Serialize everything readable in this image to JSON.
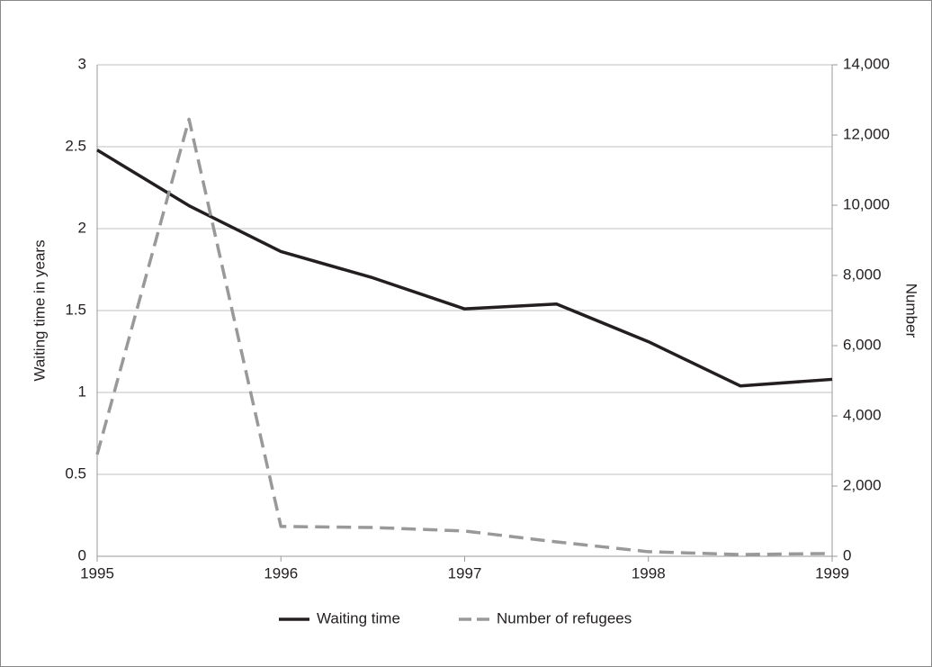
{
  "chart_data": {
    "type": "line",
    "x": [
      1995,
      1995.5,
      1996,
      1996.5,
      1997,
      1997.5,
      1998,
      1998.5,
      1999
    ],
    "series": [
      {
        "name": "Waiting time",
        "color": "#231f20",
        "dash": false,
        "values": [
          2.48,
          2.14,
          1.86,
          1.7,
          1.51,
          1.54,
          1.31,
          1.04,
          1.08
        ]
      },
      {
        "name": "Number of refugees",
        "color": "#999999",
        "dash": true,
        "axis": "y2",
        "values": [
          2900,
          12450,
          850,
          820,
          720,
          410,
          130,
          50,
          80
        ]
      }
    ],
    "ylabel": "Waiting time in years",
    "y2label": "Number",
    "xlim": [
      1995,
      1999
    ],
    "xticks": [
      1995,
      1996,
      1997,
      1998,
      1999
    ],
    "ylim": [
      0,
      3
    ],
    "yticks": [
      0,
      0.5,
      1,
      1.5,
      2,
      2.5,
      3
    ],
    "y2lim": [
      0,
      14000
    ],
    "y2ticks": [
      0,
      {
        "value": 2000,
        "label": "2,000"
      },
      {
        "value": 4000,
        "label": "4,000"
      },
      {
        "value": 6000,
        "label": "6,000"
      },
      {
        "value": 8000,
        "label": "8,000"
      },
      {
        "value": 10000,
        "label": "10,000"
      },
      {
        "value": 12000,
        "label": "12,000"
      },
      {
        "value": 14000,
        "label": "14,000"
      }
    ],
    "grid": true,
    "legend": "bottom"
  }
}
